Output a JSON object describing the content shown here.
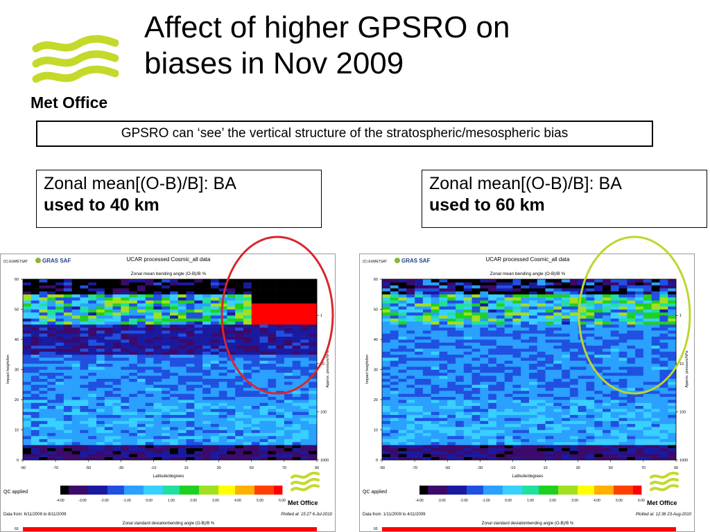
{
  "slide": {
    "title": "Affect of higher GPSRO on\nbiases in Nov 2009",
    "subtitle": "GPSRO can ‘see’ the vertical structure of the stratospheric/mesospheric bias",
    "logo_text": "Met Office"
  },
  "left_label": {
    "line1": "Zonal mean[(O-B)/B]: BA",
    "line2": "used to 40 km"
  },
  "right_label": {
    "line1": "Zonal mean[(O-B)/B]: BA",
    "line2": "used to 60 km"
  },
  "colors": {
    "logo_yellow": "#c4d92a",
    "left_circle": "#d9262c",
    "right_circle": "#bcd62e",
    "scale": [
      "#000000",
      "#3b0a6b",
      "#1a1aa0",
      "#2050e0",
      "#2aa0ff",
      "#38d0ff",
      "#20e0a0",
      "#20d020",
      "#a0e020",
      "#ffff00",
      "#ffb000",
      "#ff4000",
      "#ff0000"
    ]
  },
  "chart_data": [
    {
      "type": "heatmap",
      "copyright": "(C) EUMETSAT",
      "brand": "GRAS SAF",
      "title": "UCAR processed Cosmic_all data",
      "subtitle": "Zonal mean bending angle (O-B)/B %",
      "xlabel": "Latitude/degrees",
      "ylabel": "Impact height/km",
      "y2label": "Approx. pressure/hPa",
      "x_ticks": [
        "-90",
        "-70",
        "-50",
        "-30",
        "-10",
        "10",
        "30",
        "50",
        "70",
        "90"
      ],
      "y_ticks": [
        "0",
        "10",
        "20",
        "30",
        "40",
        "50",
        "60"
      ],
      "y2_ticks": [
        "1",
        "10",
        "100",
        "1000"
      ],
      "xlim": [
        -90,
        90
      ],
      "ylim": [
        0,
        60
      ],
      "colorbar_ticks": [
        "-4.00",
        "-3.00",
        "-2.00",
        "-1.00",
        "0.00",
        "1.00",
        "2.00",
        "3.00",
        "4.00",
        "5.00",
        "6.00"
      ],
      "colorbar_range": [
        -4,
        6
      ],
      "qc_label": "QC applied",
      "data_from": "Data from: 6/11/2009 to 8/11/2009",
      "plotted_at": "Plotted at: 15:27  6-Jul-2010",
      "next_title": "Zonal standard deviationbending angle (O-B)/B %",
      "next_y_tick": "60",
      "bias_band": {
        "lat_range": [
          50,
          90
        ],
        "height_range": [
          45,
          52
        ],
        "value": 6
      },
      "layers": [
        {
          "height_range": [
            55,
            60
          ],
          "value": -4
        },
        {
          "height_range": [
            45,
            55
          ],
          "value": 0.5
        },
        {
          "height_range": [
            35,
            45
          ],
          "value": -2.5
        },
        {
          "height_range": [
            20,
            35
          ],
          "value": -1
        },
        {
          "height_range": [
            5,
            20
          ],
          "value": -0.5
        },
        {
          "height_range": [
            0,
            5
          ],
          "value": -3
        }
      ],
      "logo_text": "Met Office"
    },
    {
      "type": "heatmap",
      "copyright": "(C) EUMETSAT",
      "brand": "GRAS SAF",
      "title": "UCAR processed Cosmic_all data",
      "subtitle": "Zonal mean bending angle (O-B)/B %",
      "xlabel": "Latitude/degrees",
      "ylabel": "Impact height/km",
      "y2label": "Approx. pressure/hPa",
      "x_ticks": [
        "-90",
        "-70",
        "-50",
        "-30",
        "-10",
        "10",
        "30",
        "50",
        "70",
        "90"
      ],
      "y_ticks": [
        "0",
        "10",
        "20",
        "30",
        "40",
        "50",
        "60"
      ],
      "y2_ticks": [
        "1",
        "10",
        "100",
        "1000"
      ],
      "xlim": [
        -90,
        90
      ],
      "ylim": [
        0,
        60
      ],
      "colorbar_ticks": [
        "-4.00",
        "-3.00",
        "-2.00",
        "-1.00",
        "0.00",
        "1.00",
        "2.00",
        "3.00",
        "4.00",
        "5.00",
        "6.00"
      ],
      "colorbar_range": [
        -4,
        6
      ],
      "qc_label": "QC applied",
      "data_from": "Data from: 1/11/2009 to 4/11/2009",
      "plotted_at": "Plotted at: 12:36 23-Aug-2010",
      "next_title": "Zonal standard deviationbending angle (O-B)/B %",
      "next_y_tick": "60",
      "bias_band": null,
      "layers": [
        {
          "height_range": [
            55,
            60
          ],
          "value": -3
        },
        {
          "height_range": [
            45,
            55
          ],
          "value": 0.5
        },
        {
          "height_range": [
            35,
            45
          ],
          "value": -1
        },
        {
          "height_range": [
            20,
            35
          ],
          "value": -1
        },
        {
          "height_range": [
            5,
            20
          ],
          "value": -0.5
        },
        {
          "height_range": [
            0,
            5
          ],
          "value": -3
        }
      ],
      "logo_text": "Met Office"
    }
  ]
}
